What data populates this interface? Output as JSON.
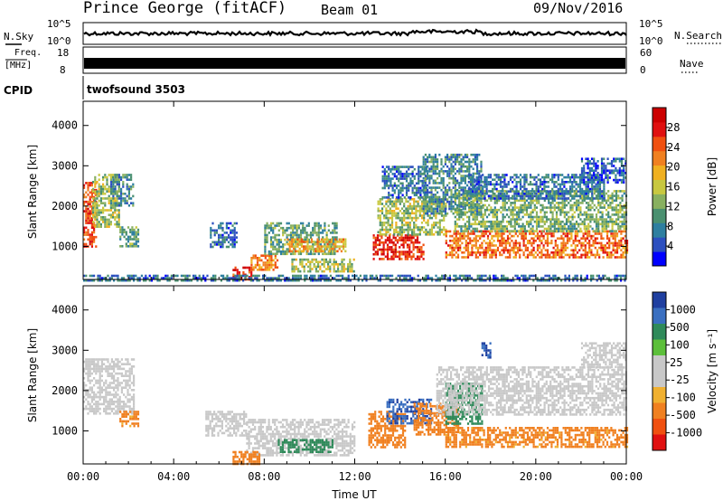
{
  "header": {
    "station": "Prince George (fitACF)",
    "beam": "Beam 01",
    "date": "09/Nov/2016"
  },
  "strips": {
    "nsky_label": "N.Sky",
    "nsky_ticks": [
      "10^5",
      "10^0"
    ],
    "nsearch_label": "N.Search",
    "nsearch_ticks": [
      "10^5",
      "10^0"
    ],
    "freq_label_1": "Freq.",
    "freq_label_2": "[MHz]",
    "freq_ticks": [
      "18",
      "8"
    ],
    "nave_label": "Nave",
    "nave_ticks": [
      "60",
      "0"
    ],
    "cpid_label": "CPID",
    "cpid_value": "twofsound 3503"
  },
  "colors": {
    "power_scale": [
      "#0000ff",
      "#2c4fbf",
      "#2e7fa0",
      "#4a9070",
      "#88b060",
      "#c8c840",
      "#f0b020",
      "#f08020",
      "#f05010",
      "#e01010",
      "#cc0000"
    ],
    "velocity_scale": [
      "#1f3fa0",
      "#3a6fc0",
      "#2f8a5a",
      "#5cbf3a",
      "#c8c8c8",
      "#c8c8c8",
      "#f0b030",
      "#f08020",
      "#f05010",
      "#e01010"
    ]
  },
  "chart_data": [
    {
      "type": "heatmap",
      "title": "",
      "xlabel": "",
      "ylabel": "Slant Range [km]",
      "xlim": [
        "00:00",
        "24:00"
      ],
      "ylim": [
        180,
        4600
      ],
      "x_ticks": [
        "00:00",
        "04:00",
        "08:00",
        "12:00",
        "16:00",
        "20:00",
        "00:00"
      ],
      "y_ticks": [
        1000,
        2000,
        3000,
        4000
      ],
      "colorbar_label": "Power [dB]",
      "colorbar_ticks": [
        4,
        8,
        12,
        16,
        20,
        24,
        28
      ],
      "colorbar_range": [
        0,
        32
      ],
      "patches": [
        {
          "t0": 0.0,
          "t1": 0.6,
          "r0": 1000,
          "r1": 2600,
          "level": 26
        },
        {
          "t0": 0.4,
          "t1": 1.6,
          "r0": 1500,
          "r1": 2800,
          "level": 14
        },
        {
          "t0": 1.2,
          "t1": 2.2,
          "r0": 2000,
          "r1": 2800,
          "level": 8
        },
        {
          "t0": 1.6,
          "t1": 2.4,
          "r0": 1000,
          "r1": 1500,
          "level": 10
        },
        {
          "t0": 5.6,
          "t1": 6.8,
          "r0": 1000,
          "r1": 1600,
          "level": 6
        },
        {
          "t0": 6.6,
          "t1": 7.4,
          "r0": 200,
          "r1": 500,
          "level": 28
        },
        {
          "t0": 7.4,
          "t1": 8.6,
          "r0": 400,
          "r1": 800,
          "level": 22
        },
        {
          "t0": 8.0,
          "t1": 11.2,
          "r0": 800,
          "r1": 1600,
          "level": 10
        },
        {
          "t0": 9.0,
          "t1": 11.6,
          "r0": 900,
          "r1": 1200,
          "level": 20
        },
        {
          "t0": 9.2,
          "t1": 12.0,
          "r0": 400,
          "r1": 700,
          "level": 14
        },
        {
          "t0": 12.8,
          "t1": 15.0,
          "r0": 700,
          "r1": 1300,
          "level": 28
        },
        {
          "t0": 13.0,
          "t1": 16.0,
          "r0": 1300,
          "r1": 2200,
          "level": 14
        },
        {
          "t0": 13.2,
          "t1": 15.2,
          "r0": 2200,
          "r1": 3000,
          "level": 6
        },
        {
          "t0": 15.0,
          "t1": 17.6,
          "r0": 1800,
          "r1": 3300,
          "level": 8
        },
        {
          "t0": 16.0,
          "t1": 24.0,
          "r0": 700,
          "r1": 1400,
          "level": 24
        },
        {
          "t0": 16.4,
          "t1": 24.0,
          "r0": 1400,
          "r1": 2400,
          "level": 12
        },
        {
          "t0": 17.0,
          "t1": 23.0,
          "r0": 2200,
          "r1": 2800,
          "level": 6
        },
        {
          "t0": 22.0,
          "t1": 24.0,
          "r0": 2600,
          "r1": 3200,
          "level": 4
        },
        {
          "t0": 0.0,
          "t1": 24.0,
          "r0": 180,
          "r1": 300,
          "level": 6
        }
      ]
    },
    {
      "type": "heatmap",
      "title": "",
      "xlabel": "Time UT",
      "ylabel": "Slant Range [km]",
      "xlim": [
        "00:00",
        "24:00"
      ],
      "ylim": [
        180,
        4600
      ],
      "x_ticks": [
        "00:00",
        "04:00",
        "08:00",
        "12:00",
        "16:00",
        "20:00",
        "00:00"
      ],
      "y_ticks": [
        1000,
        2000,
        3000,
        4000
      ],
      "colorbar_label": "Velocity [m s⁻¹]",
      "colorbar_ticks": [
        1000,
        500,
        100,
        25,
        -25,
        -100,
        -500,
        -1000
      ],
      "patches": [
        {
          "t0": 0.0,
          "t1": 2.2,
          "r0": 1400,
          "r1": 2800,
          "level": 0
        },
        {
          "t0": 1.6,
          "t1": 2.4,
          "r0": 1100,
          "r1": 1500,
          "level": -150
        },
        {
          "t0": 5.4,
          "t1": 7.2,
          "r0": 900,
          "r1": 1500,
          "level": 0
        },
        {
          "t0": 7.2,
          "t1": 12.0,
          "r0": 400,
          "r1": 1300,
          "level": 0
        },
        {
          "t0": 6.6,
          "t1": 7.8,
          "r0": 200,
          "r1": 500,
          "level": -200
        },
        {
          "t0": 8.6,
          "t1": 11.0,
          "r0": 500,
          "r1": 800,
          "level": 150
        },
        {
          "t0": 12.6,
          "t1": 14.2,
          "r0": 600,
          "r1": 1500,
          "level": -200
        },
        {
          "t0": 13.4,
          "t1": 15.4,
          "r0": 1200,
          "r1": 1800,
          "level": 600
        },
        {
          "t0": 14.6,
          "t1": 16.6,
          "r0": 900,
          "r1": 1700,
          "level": -250
        },
        {
          "t0": 16.0,
          "t1": 17.6,
          "r0": 1200,
          "r1": 2200,
          "level": 200
        },
        {
          "t0": 15.6,
          "t1": 24.0,
          "r0": 1400,
          "r1": 2600,
          "level": 0
        },
        {
          "t0": 16.0,
          "t1": 24.0,
          "r0": 600,
          "r1": 1100,
          "level": -150
        },
        {
          "t0": 22.0,
          "t1": 24.0,
          "r0": 2600,
          "r1": 3200,
          "level": 0
        },
        {
          "t0": 17.6,
          "t1": 18.0,
          "r0": 2800,
          "r1": 3200,
          "level": 700
        }
      ]
    }
  ],
  "xaxis_title": "Time UT"
}
